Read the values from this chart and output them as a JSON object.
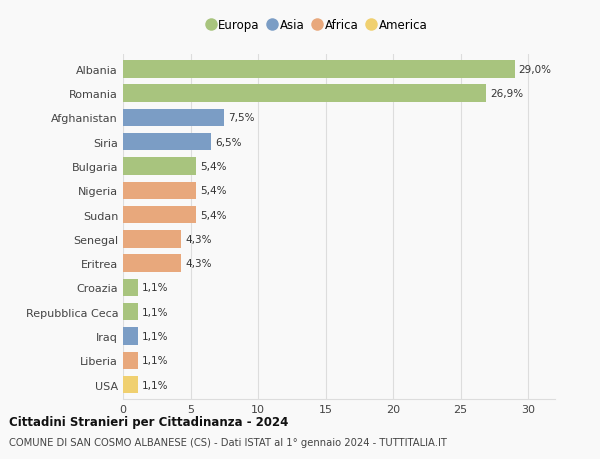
{
  "countries": [
    "Albania",
    "Romania",
    "Afghanistan",
    "Siria",
    "Bulgaria",
    "Nigeria",
    "Sudan",
    "Senegal",
    "Eritrea",
    "Croazia",
    "Repubblica Ceca",
    "Iraq",
    "Liberia",
    "USA"
  ],
  "values": [
    29.0,
    26.9,
    7.5,
    6.5,
    5.4,
    5.4,
    5.4,
    4.3,
    4.3,
    1.1,
    1.1,
    1.1,
    1.1,
    1.1
  ],
  "labels": [
    "29,0%",
    "26,9%",
    "7,5%",
    "6,5%",
    "5,4%",
    "5,4%",
    "5,4%",
    "4,3%",
    "4,3%",
    "1,1%",
    "1,1%",
    "1,1%",
    "1,1%",
    "1,1%"
  ],
  "continents": [
    "Europa",
    "Europa",
    "Asia",
    "Asia",
    "Europa",
    "Africa",
    "Africa",
    "Africa",
    "Africa",
    "Europa",
    "Europa",
    "Asia",
    "Africa",
    "America"
  ],
  "colors": {
    "Europa": "#a8c47e",
    "Asia": "#7b9dc5",
    "Africa": "#e8a87c",
    "America": "#f0d070"
  },
  "legend_order": [
    "Europa",
    "Asia",
    "Africa",
    "America"
  ],
  "title": "Cittadini Stranieri per Cittadinanza - 2024",
  "subtitle": "COMUNE DI SAN COSMO ALBANESE (CS) - Dati ISTAT al 1° gennaio 2024 - TUTTITALIA.IT",
  "xlim": [
    0,
    32
  ],
  "xticks": [
    0,
    5,
    10,
    15,
    20,
    25,
    30
  ],
  "bg_color": "#f9f9f9",
  "grid_color": "#dddddd",
  "bar_height": 0.72
}
